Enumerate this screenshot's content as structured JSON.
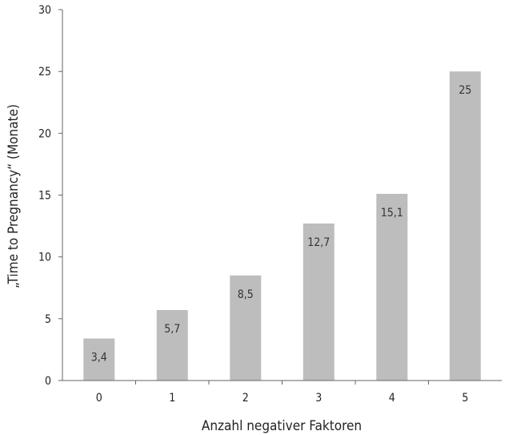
{
  "chart_data": {
    "type": "bar",
    "categories": [
      "0",
      "1",
      "2",
      "3",
      "4",
      "5"
    ],
    "values": [
      3.4,
      5.7,
      8.5,
      12.7,
      15.1,
      25
    ],
    "data_labels": [
      "3,4",
      "5,7",
      "8,5",
      "12,7",
      "15,1",
      "25"
    ],
    "title": "",
    "xlabel": "Anzahl negativer Faktoren",
    "ylabel": "„Time to Pregnancy“ (Monate)",
    "ylim": [
      0,
      30
    ],
    "yticks": [
      0,
      5,
      10,
      15,
      20,
      25,
      30
    ],
    "grid": false,
    "legend": "none",
    "bar_color": "#bdbdbd",
    "axis_color": "#666666"
  }
}
